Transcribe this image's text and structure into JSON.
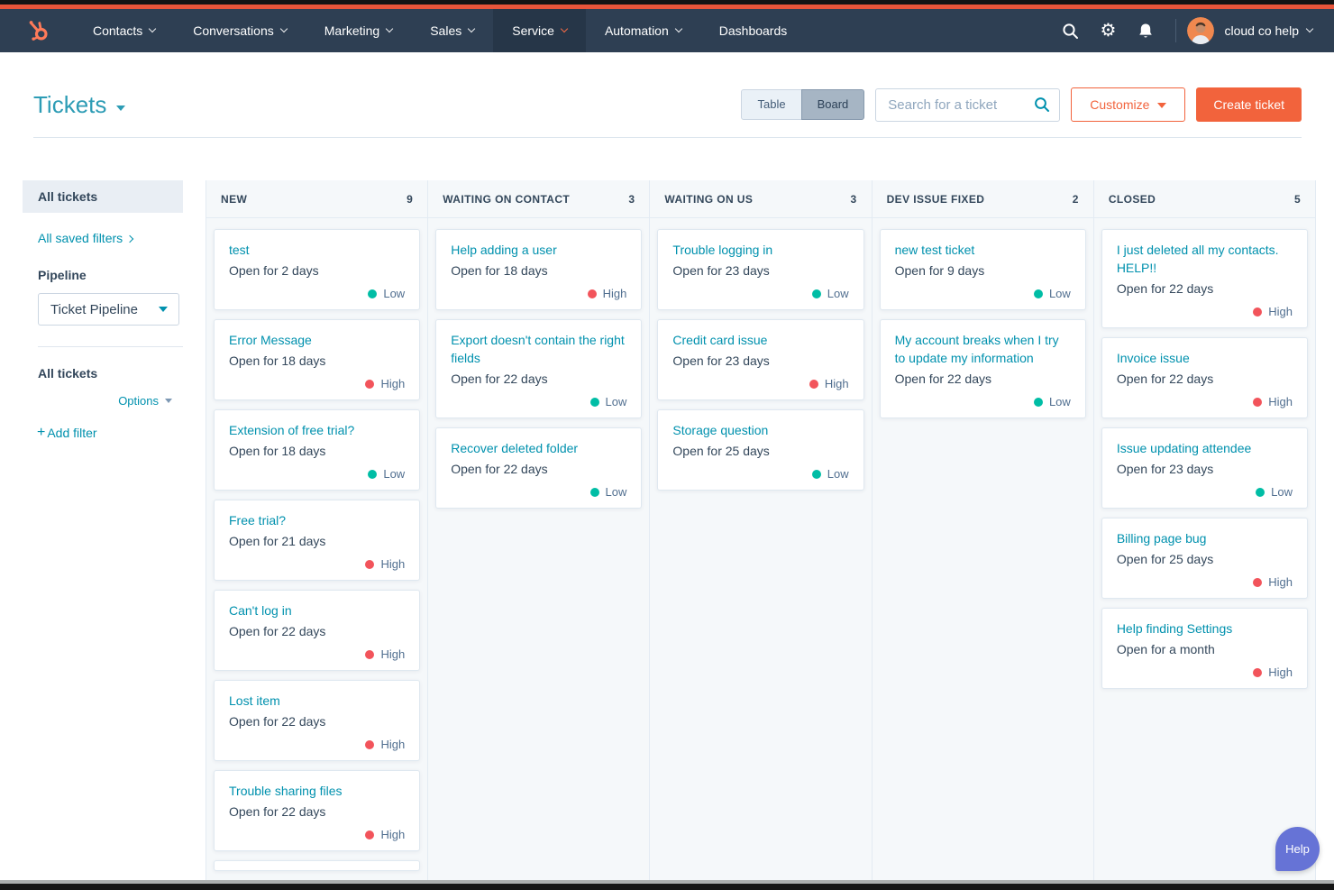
{
  "nav": {
    "items": [
      {
        "label": "Contacts",
        "chevron": true,
        "active": false
      },
      {
        "label": "Conversations",
        "chevron": true,
        "active": false
      },
      {
        "label": "Marketing",
        "chevron": true,
        "active": false
      },
      {
        "label": "Sales",
        "chevron": true,
        "active": false
      },
      {
        "label": "Service",
        "chevron": true,
        "active": true
      },
      {
        "label": "Automation",
        "chevron": true,
        "active": false
      },
      {
        "label": "Dashboards",
        "chevron": false,
        "active": false
      }
    ],
    "account_label": "cloud co help"
  },
  "header": {
    "title": "Tickets",
    "view_toggle": [
      "Table",
      "Board"
    ],
    "selected_view": "Board",
    "search_placeholder": "Search for a ticket",
    "customize_label": "Customize",
    "create_ticket_label": "Create ticket"
  },
  "sidebar": {
    "selected_item": "All tickets",
    "saved_filters_link": "All saved filters",
    "pipeline_label": "Pipeline",
    "pipeline_value": "Ticket Pipeline",
    "list_title": "All tickets",
    "options_label": "Options",
    "add_filter_label": "Add filter"
  },
  "board": {
    "columns": [
      {
        "name": "NEW",
        "count": 9,
        "has_partial_card": true,
        "cards": [
          {
            "title": "test",
            "age": "Open for 2 days",
            "priority": "Low"
          },
          {
            "title": "Error Message",
            "age": "Open for 18 days",
            "priority": "High"
          },
          {
            "title": "Extension of free trial?",
            "age": "Open for 18 days",
            "priority": "Low"
          },
          {
            "title": "Free trial?",
            "age": "Open for 21 days",
            "priority": "High"
          },
          {
            "title": "Can't log in",
            "age": "Open for 22 days",
            "priority": "High"
          },
          {
            "title": "Lost item",
            "age": "Open for 22 days",
            "priority": "High"
          },
          {
            "title": "Trouble sharing files",
            "age": "Open for 22 days",
            "priority": "High"
          }
        ]
      },
      {
        "name": "WAITING ON CONTACT",
        "count": 3,
        "has_partial_card": false,
        "cards": [
          {
            "title": "Help adding a user",
            "age": "Open for 18 days",
            "priority": "High"
          },
          {
            "title": "Export doesn't contain the right fields",
            "age": "Open for 22 days",
            "priority": "Low"
          },
          {
            "title": "Recover deleted folder",
            "age": "Open for 22 days",
            "priority": "Low"
          }
        ]
      },
      {
        "name": "WAITING ON US",
        "count": 3,
        "has_partial_card": false,
        "cards": [
          {
            "title": "Trouble logging in",
            "age": "Open for 23 days",
            "priority": "Low"
          },
          {
            "title": "Credit card issue",
            "age": "Open for 23 days",
            "priority": "High"
          },
          {
            "title": "Storage question",
            "age": "Open for 25 days",
            "priority": "Low"
          }
        ]
      },
      {
        "name": "DEV ISSUE FIXED",
        "count": 2,
        "has_partial_card": false,
        "cards": [
          {
            "title": "new test ticket",
            "age": "Open for 9 days",
            "priority": "Low"
          },
          {
            "title": "My account breaks when I try to update my information",
            "age": "Open for 22 days",
            "priority": "Low"
          }
        ]
      },
      {
        "name": "CLOSED",
        "count": 5,
        "has_partial_card": false,
        "cards": [
          {
            "title": "I just deleted all my contacts. HELP!!",
            "age": "Open for 22 days",
            "priority": "High"
          },
          {
            "title": "Invoice issue",
            "age": "Open for 22 days",
            "priority": "High"
          },
          {
            "title": "Issue updating attendee",
            "age": "Open for 23 days",
            "priority": "Low"
          },
          {
            "title": "Billing page bug",
            "age": "Open for 25 days",
            "priority": "High"
          },
          {
            "title": "Help finding Settings",
            "age": "Open for a month",
            "priority": "High"
          }
        ]
      }
    ]
  },
  "help": {
    "label": "Help"
  },
  "colors": {
    "accent_orange": "#f2633c",
    "brand_orange": "#ff7a59",
    "link_teal": "#0091ae",
    "nav_bg": "#2e3f53",
    "priority_low": "#00bda5",
    "priority_high": "#f2545b",
    "text_dark": "#33475b",
    "board_bg": "#f5f8fa"
  }
}
